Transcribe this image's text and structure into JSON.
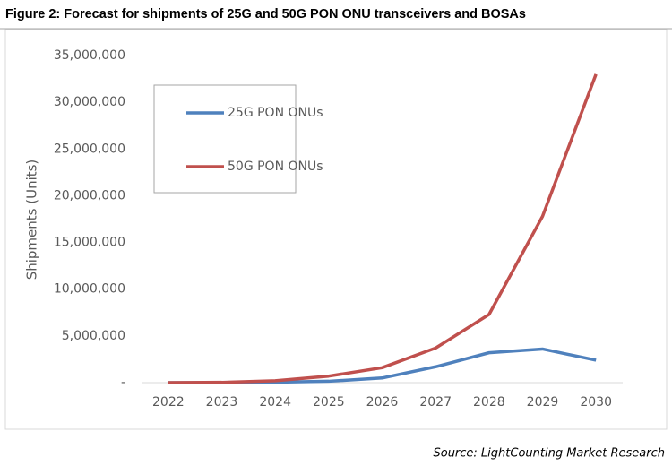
{
  "chart_data": {
    "type": "line",
    "title": "Figure 2: Forecast for shipments of 25G and 50G PON ONU transceivers and BOSAs",
    "y_label": "Shipments (Units)",
    "source": "Source:  LightCounting Market Research",
    "categories": [
      "2022",
      "2023",
      "2024",
      "2025",
      "2026",
      "2027",
      "2028",
      "2029",
      "2030"
    ],
    "series": [
      {
        "name": "25G PON ONUs",
        "color": "#4f81bd",
        "values": [
          0,
          0,
          50000,
          150000,
          500000,
          1700000,
          3200000,
          3600000,
          2400000
        ]
      },
      {
        "name": "50G PON ONUs",
        "color": "#c0504d",
        "values": [
          0,
          30000,
          200000,
          700000,
          1600000,
          3700000,
          7300000,
          17800000,
          33000000
        ]
      }
    ],
    "ylim": [
      0,
      35000000
    ],
    "yticks": [
      {
        "value": 0,
        "label": "-"
      },
      {
        "value": 5000000,
        "label": "5,000,000"
      },
      {
        "value": 10000000,
        "label": "10,000,000"
      },
      {
        "value": 15000000,
        "label": "15,000,000"
      },
      {
        "value": 20000000,
        "label": "20,000,000"
      },
      {
        "value": 25000000,
        "label": "25,000,000"
      },
      {
        "value": 30000000,
        "label": "30,000,000"
      },
      {
        "value": 35000000,
        "label": "35,000,000"
      }
    ],
    "grid": false
  }
}
